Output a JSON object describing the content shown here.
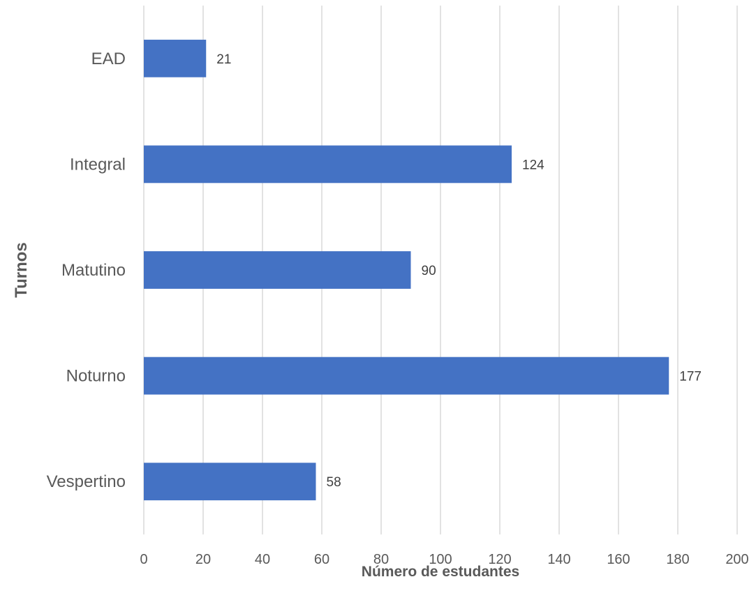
{
  "chart_data": {
    "type": "bar",
    "orientation": "horizontal",
    "categories": [
      "EAD",
      "Integral",
      "Matutino",
      "Noturno",
      "Vespertino"
    ],
    "values": [
      21,
      124,
      90,
      177,
      58
    ],
    "title": "",
    "xlabel": "Número de estudantes",
    "ylabel": "Turnos",
    "xlim": [
      0,
      200
    ],
    "xticks": [
      "0",
      "20",
      "40",
      "60",
      "80",
      "100",
      "120",
      "140",
      "160",
      "180",
      "200"
    ],
    "grid": "vertical",
    "legend": "none",
    "bar_color": "#4472C4"
  }
}
